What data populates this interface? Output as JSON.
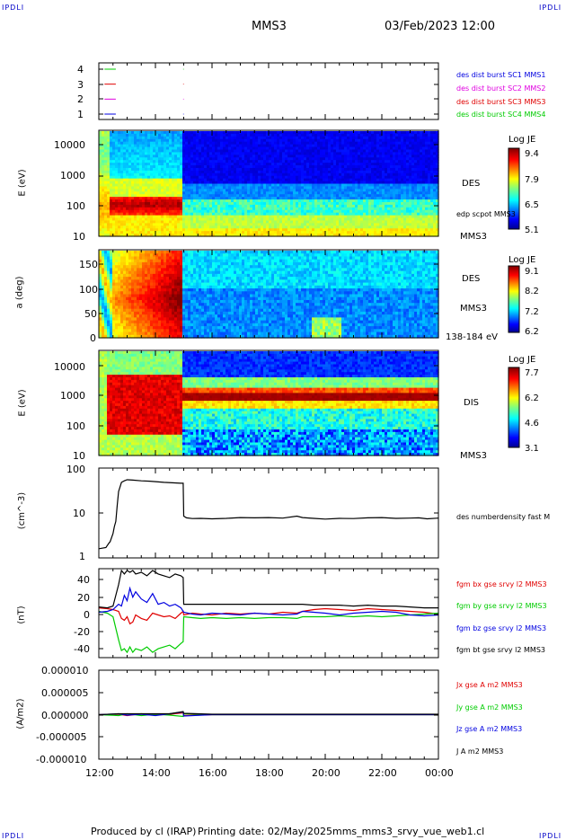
{
  "header": {
    "corner_left_top": "IPDLI",
    "corner_right_top": "IPDLI",
    "corner_left_bottom": "IPDLI",
    "corner_right_bottom": "IPDLI",
    "spacecraft": "MMS3",
    "datetime": "03/Feb/2023 12:00"
  },
  "footer": {
    "produced": "Produced by cl (IRAP)",
    "printing": "Printing date: 02/May/2025",
    "script": "mms_mms3_srvy_vue_web1.cl"
  },
  "colors": {
    "black": "#000000",
    "red": "#e00000",
    "green": "#00cc00",
    "blue": "#0000e0",
    "magenta": "#e000e0"
  },
  "time_axis": {
    "ticks": [
      "12:00",
      "14:00",
      "16:00",
      "18:00",
      "20:00",
      "22:00",
      "00:00"
    ]
  },
  "chart_data": [
    {
      "type": "line",
      "panel": "availability",
      "ylim": [
        0.5,
        4.5
      ],
      "y_ticks": [
        "4",
        "3",
        "2",
        "1"
      ],
      "legend": [
        {
          "label": "des dist burst SC1 MMS1",
          "color": "#0000e0"
        },
        {
          "label": "des dist burst SC2 MMS2",
          "color": "#e000e0"
        },
        {
          "label": "des dist burst SC3 MMS3",
          "color": "#e00000"
        },
        {
          "label": "des dist burst SC4 MMS4",
          "color": "#00cc00"
        }
      ],
      "series": [
        {
          "y": 4,
          "color": "#00cc00",
          "segments": [
            [
              12.2,
              12.6
            ],
            [
              14.98,
              15.0
            ]
          ]
        },
        {
          "y": 3,
          "color": "#e00000",
          "segments": [
            [
              12.2,
              12.6
            ],
            [
              14.98,
              15.0
            ]
          ]
        },
        {
          "y": 2,
          "color": "#e000e0",
          "segments": [
            [
              12.2,
              12.6
            ],
            [
              14.98,
              15.0
            ]
          ]
        },
        {
          "y": 1,
          "color": "#0000e0",
          "segments": [
            [
              12.2,
              12.6
            ],
            [
              14.98,
              15.0
            ]
          ]
        }
      ]
    },
    {
      "type": "heatmap",
      "panel": "des-energy",
      "ylabel": "E (eV)",
      "y_ticks": [
        "10000",
        "1000",
        "100",
        "10"
      ],
      "right_labels": [
        "DES",
        "edp scpot MMS3",
        "MMS3"
      ],
      "colorbar": {
        "title": "Log JE",
        "ticks": [
          "9.4",
          "7.9",
          "6.5",
          "5.1"
        ]
      }
    },
    {
      "type": "heatmap",
      "panel": "des-pitch",
      "ylabel": "a (deg)",
      "y_ticks": [
        "150",
        "100",
        "50",
        "0"
      ],
      "right_labels": [
        "DES",
        "MMS3",
        "138-184 eV"
      ],
      "colorbar": {
        "title": "Log JE",
        "ticks": [
          "9.1",
          "8.2",
          "7.2",
          "6.2"
        ]
      }
    },
    {
      "type": "heatmap",
      "panel": "dis-energy",
      "ylabel": "E (eV)",
      "y_ticks": [
        "10000",
        "1000",
        "100",
        "10"
      ],
      "right_labels": [
        "DIS",
        "MMS3"
      ],
      "colorbar": {
        "title": "Log JE",
        "ticks": [
          "7.7",
          "6.2",
          "4.6",
          "3.1"
        ]
      }
    },
    {
      "type": "line",
      "panel": "density",
      "ylabel": "(cm^-3)",
      "y_ticks": [
        "100",
        "10",
        "1"
      ],
      "ylim": [
        1,
        100
      ],
      "log": true,
      "series": [
        {
          "name": "des numberdensity fast M",
          "color": "#000000",
          "x": [
            12.0,
            12.25,
            12.3,
            12.35,
            12.4,
            12.5,
            12.55,
            12.6,
            12.65,
            12.7,
            12.8,
            12.9,
            13.0,
            13.2,
            13.5,
            13.8,
            14.0,
            14.3,
            14.6,
            14.9,
            14.98,
            15.0,
            15.1,
            15.3,
            15.6,
            16.0,
            16.5,
            17.0,
            17.5,
            18.0,
            18.5,
            19.0,
            19.2,
            19.6,
            20.0,
            20.5,
            21.0,
            21.5,
            22.0,
            22.5,
            23.0,
            23.3,
            23.6,
            24.0
          ],
          "y": [
            1.6,
            1.7,
            1.9,
            2.1,
            2.3,
            3.5,
            5.0,
            6.5,
            15,
            30,
            48,
            52,
            55,
            54,
            52,
            51,
            50,
            48,
            47,
            46,
            46,
            8.5,
            7.8,
            7.5,
            7.6,
            7.4,
            7.6,
            7.9,
            7.8,
            7.9,
            7.7,
            8.5,
            7.9,
            7.6,
            7.3,
            7.6,
            7.5,
            7.8,
            7.9,
            7.6,
            7.7,
            7.8,
            7.4,
            7.7
          ]
        }
      ]
    },
    {
      "type": "line",
      "panel": "magnetic-field",
      "ylabel": "(nT)",
      "y_ticks": [
        "40",
        "20",
        "0",
        "-20",
        "-40"
      ],
      "ylim": [
        -50,
        50
      ],
      "series": [
        {
          "name": "fgm bx gse srvy l2 MMS3",
          "color": "#e00000",
          "x": [
            12.0,
            12.3,
            12.5,
            12.7,
            12.8,
            12.9,
            13.0,
            13.1,
            13.2,
            13.3,
            13.5,
            13.7,
            13.9,
            14.1,
            14.3,
            14.5,
            14.7,
            14.9,
            14.98,
            15.0,
            15.3,
            15.6,
            16.0,
            16.5,
            17.0,
            17.5,
            18.0,
            18.5,
            19.0,
            19.2,
            19.6,
            20.0,
            20.5,
            21.0,
            21.5,
            22.0,
            22.5,
            23.0,
            23.5,
            24.0
          ],
          "y": [
            6,
            5,
            4,
            2,
            -6,
            -8,
            -4,
            -12,
            -10,
            -2,
            -6,
            -8,
            0,
            -2,
            -4,
            -3,
            -6,
            0,
            2,
            -2,
            0,
            -1,
            -2,
            0,
            -1,
            0,
            -1,
            1,
            0,
            2,
            4,
            5,
            4,
            3,
            5,
            4,
            3,
            2,
            1,
            -1
          ]
        },
        {
          "name": "fgm by gse srvy l2 MMS3",
          "color": "#00cc00",
          "x": [
            12.0,
            12.3,
            12.5,
            12.7,
            12.8,
            12.9,
            13.0,
            13.1,
            13.2,
            13.3,
            13.5,
            13.7,
            13.9,
            14.1,
            14.3,
            14.5,
            14.7,
            14.9,
            14.98,
            15.0,
            15.3,
            15.6,
            16.0,
            16.5,
            17.0,
            17.5,
            18.0,
            18.5,
            19.0,
            19.2,
            19.6,
            20.0,
            20.5,
            21.0,
            21.5,
            22.0,
            22.5,
            23.0,
            23.5,
            24.0
          ],
          "y": [
            2,
            0,
            -4,
            -30,
            -42,
            -40,
            -44,
            -38,
            -44,
            -40,
            -42,
            -38,
            -44,
            -40,
            -38,
            -36,
            -40,
            -34,
            -32,
            -4,
            -5,
            -6,
            -5,
            -6,
            -5,
            -6,
            -5,
            -5,
            -6,
            -4,
            -4,
            -4,
            -3,
            -4,
            -3,
            -4,
            -3,
            -2,
            -1,
            0
          ]
        },
        {
          "name": "fgm bz gse srvy l2 MMS3",
          "color": "#0000e0",
          "x": [
            12.0,
            12.3,
            12.5,
            12.7,
            12.8,
            12.9,
            13.0,
            13.1,
            13.2,
            13.3,
            13.5,
            13.7,
            13.9,
            14.1,
            14.3,
            14.5,
            14.7,
            14.9,
            14.98,
            15.0,
            15.3,
            15.6,
            16.0,
            16.5,
            17.0,
            17.5,
            18.0,
            18.5,
            19.0,
            19.2,
            19.6,
            20.0,
            20.5,
            21.0,
            21.5,
            22.0,
            22.5,
            23.0,
            23.5,
            24.0
          ],
          "y": [
            1,
            2,
            4,
            10,
            8,
            20,
            14,
            28,
            18,
            24,
            16,
            12,
            22,
            10,
            12,
            8,
            10,
            6,
            2,
            1,
            -1,
            -2,
            0,
            -1,
            -2,
            0,
            -1,
            -2,
            -1,
            2,
            1,
            0,
            -2,
            0,
            1,
            2,
            1,
            -2,
            -3,
            -2
          ]
        },
        {
          "name": "fgm bt gse srvy l2 MMS3",
          "color": "#000000",
          "x": [
            12.0,
            12.3,
            12.5,
            12.7,
            12.8,
            12.9,
            13.0,
            13.1,
            13.2,
            13.3,
            13.5,
            13.7,
            13.9,
            14.1,
            14.3,
            14.5,
            14.7,
            14.9,
            14.98,
            15.0,
            15.3,
            15.6,
            16.0,
            16.5,
            17.0,
            17.5,
            18.0,
            18.5,
            19.0,
            19.2,
            19.6,
            20.0,
            20.5,
            21.0,
            21.5,
            22.0,
            22.5,
            23.0,
            23.5,
            24.0
          ],
          "y": [
            7,
            6,
            8,
            32,
            48,
            44,
            48,
            46,
            48,
            44,
            46,
            42,
            48,
            44,
            42,
            40,
            44,
            42,
            40,
            10,
            10,
            10,
            10,
            10,
            10,
            10,
            10,
            10,
            10,
            10,
            9,
            9,
            9,
            8,
            9,
            8,
            8,
            7,
            6,
            6
          ]
        }
      ]
    },
    {
      "type": "line",
      "panel": "current-density",
      "ylabel": "(A/m2)",
      "y_ticks": [
        "0.000010",
        "0.000005",
        "0.000000",
        "-0.000005",
        "-0.000010"
      ],
      "ylim": [
        -1e-05,
        1e-05
      ],
      "series": [
        {
          "name": "Jx gse A m2 MMS3",
          "color": "#e00000",
          "x": [
            12.0,
            12.7,
            13.0,
            13.5,
            14.0,
            14.5,
            14.98,
            15.0,
            16.0,
            18.0,
            20.0,
            22.0,
            24.0
          ],
          "y": [
            0,
            1e-07,
            -2e-07,
            2e-07,
            -1e-07,
            1e-07,
            4e-07,
            -2e-07,
            0,
            0,
            0,
            0,
            0
          ]
        },
        {
          "name": "Jy gse A m2 MMS3",
          "color": "#00cc00",
          "x": [
            12.0,
            12.7,
            13.0,
            13.5,
            14.0,
            14.5,
            14.98,
            15.0,
            16.0,
            18.0,
            20.0,
            22.0,
            24.0
          ],
          "y": [
            0,
            -2e-07,
            2e-07,
            -2e-07,
            1e-07,
            -1e-07,
            -4e-07,
            2e-07,
            0,
            0,
            0,
            0,
            0
          ]
        },
        {
          "name": "Jz gse A m2 MMS3",
          "color": "#0000e0",
          "x": [
            12.0,
            12.7,
            13.0,
            13.5,
            14.0,
            14.5,
            14.98,
            15.0,
            16.0,
            18.0,
            20.0,
            22.0,
            24.0
          ],
          "y": [
            0,
            2e-07,
            -1e-07,
            1e-07,
            -2e-07,
            2e-07,
            6e-07,
            -3e-07,
            0,
            0,
            0,
            0,
            0
          ]
        },
        {
          "name": "J A m2 MMS3",
          "color": "#000000",
          "x": [
            12.0,
            12.7,
            13.0,
            13.5,
            14.0,
            14.5,
            14.98,
            15.0,
            16.0,
            18.0,
            20.0,
            22.0,
            24.0
          ],
          "y": [
            0,
            2e-07,
            2e-07,
            2e-07,
            2e-07,
            2e-07,
            7e-07,
            3e-07,
            1e-07,
            1e-07,
            1e-07,
            1e-07,
            1e-07
          ]
        }
      ]
    }
  ]
}
